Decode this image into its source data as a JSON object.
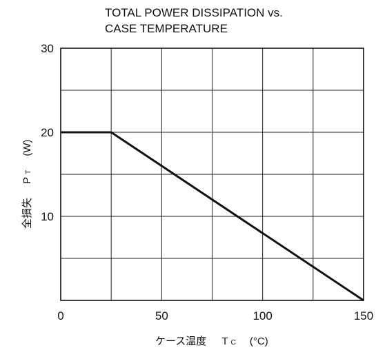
{
  "chart_data": {
    "type": "line",
    "title": [
      "TOTAL POWER DISSIPATION vs.",
      "CASE TEMPERATURE"
    ],
    "xlabel": {
      "name": "ケース温度",
      "symbol": "T",
      "subscript": "C",
      "unit": "(°C)"
    },
    "ylabel": {
      "name": "全損失",
      "symbol": "P",
      "subscript": "T",
      "unit": "(W)"
    },
    "xlim": [
      0,
      150
    ],
    "ylim": [
      0,
      30
    ],
    "x_ticks": [
      0,
      50,
      100,
      150
    ],
    "y_ticks": [
      10,
      20,
      30
    ],
    "x_grid_step": 25,
    "y_grid_step": 5,
    "grid": true,
    "series": [
      {
        "x": [
          0,
          25,
          150
        ],
        "y": [
          20,
          20,
          0
        ]
      }
    ]
  }
}
